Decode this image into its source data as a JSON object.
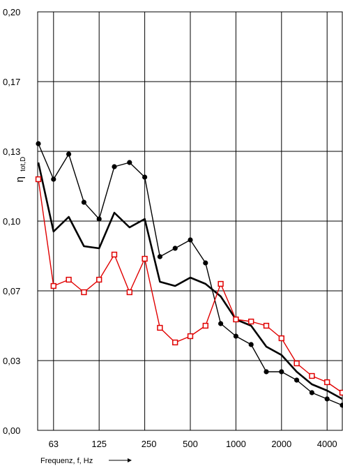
{
  "chart_data": {
    "type": "line",
    "xlabel": "Frequenz,  f, Hz",
    "ylabel_main": "η",
    "ylabel_sub": "tot,D",
    "x_tick_labels": [
      "63",
      "125",
      "250",
      "500",
      "1000",
      "2000",
      "4000"
    ],
    "y_tick_labels": [
      "0,00",
      "0,03",
      "0,07",
      "0,10",
      "0,13",
      "0,17",
      "0,20"
    ],
    "ylim": [
      0,
      0.2
    ],
    "x_scale": "log (third-octave bands, 50–5000 Hz)",
    "grid": true,
    "x": [
      50,
      63,
      80,
      100,
      125,
      160,
      200,
      250,
      315,
      400,
      500,
      630,
      800,
      1000,
      1250,
      1600,
      2000,
      2500,
      3150,
      4000,
      5000
    ],
    "series": [
      {
        "color": "#000000",
        "marker": "circle",
        "line_style": "thin",
        "values": [
          0.137,
          0.12,
          0.132,
          0.109,
          0.101,
          0.126,
          0.128,
          0.121,
          0.083,
          0.087,
          0.091,
          0.08,
          0.051,
          0.045,
          0.041,
          0.028,
          0.028,
          0.024,
          0.018,
          0.015,
          0.012
        ]
      },
      {
        "color": "#000000",
        "marker": "none",
        "line_style": "thick",
        "values": [
          0.128,
          0.095,
          0.102,
          0.088,
          0.087,
          0.104,
          0.097,
          0.101,
          0.071,
          0.069,
          0.073,
          0.07,
          0.064,
          0.053,
          0.05,
          0.04,
          0.036,
          0.028,
          0.022,
          0.019,
          0.015
        ]
      },
      {
        "color": "#e00000",
        "marker": "square",
        "line_style": "thin",
        "values": [
          0.12,
          0.069,
          0.072,
          0.066,
          0.072,
          0.084,
          0.066,
          0.082,
          0.049,
          0.042,
          0.045,
          0.05,
          0.07,
          0.053,
          0.052,
          0.05,
          0.044,
          0.032,
          0.026,
          0.023,
          0.018
        ]
      }
    ]
  }
}
